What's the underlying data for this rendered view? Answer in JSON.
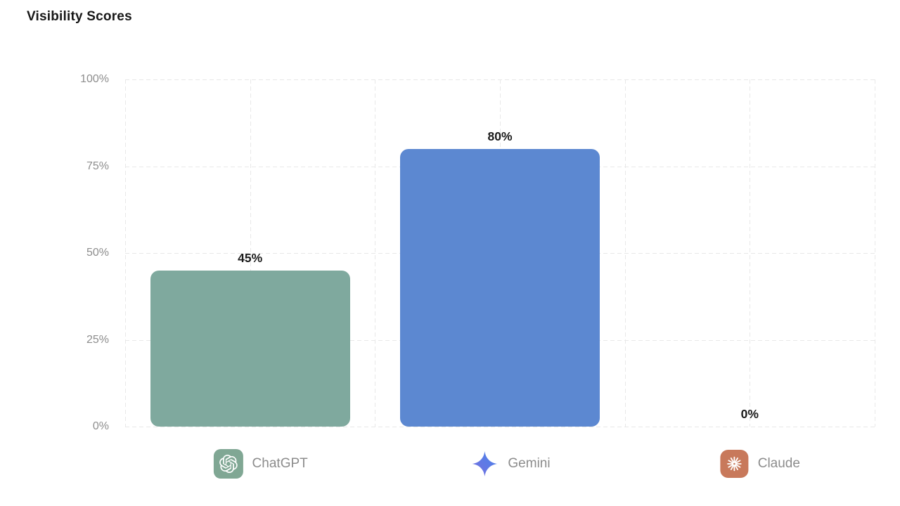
{
  "page_title": "Visibility Scores",
  "colors": {
    "background": "#ffffff",
    "grid": "#e8e8e8",
    "title_text": "#171717",
    "axis_tick_text": "#8d8d8d",
    "value_label_text": "#1b1b1b",
    "legend_label_text": "#8c8c8c",
    "chatgpt_bar": "#7FA99E",
    "gemini_bar": "#5C88D1",
    "chatgpt_icon_bg": "#80A794",
    "claude_icon_bg": "#C8795B",
    "gemini_gradient_start": "#7A6FDE",
    "gemini_gradient_end": "#4684EC"
  },
  "chart_data": {
    "type": "bar",
    "title": "Visibility Scores",
    "categories": [
      "ChatGPT",
      "Gemini",
      "Claude"
    ],
    "values": [
      45,
      80,
      0
    ],
    "value_labels": [
      "45%",
      "80%",
      "0%"
    ],
    "bar_colors": [
      "#7FA99E",
      "#5C88D1",
      "#C8795B"
    ],
    "xlabel": "",
    "ylabel": "",
    "ylim": [
      0,
      100
    ],
    "yticks": [
      {
        "value": 0,
        "label": "0%"
      },
      {
        "value": 25,
        "label": "25%"
      },
      {
        "value": 50,
        "label": "50%"
      },
      {
        "value": 75,
        "label": "75%"
      },
      {
        "value": 100,
        "label": "100%"
      }
    ],
    "grid": "dashed horizontal and vertical",
    "legend_position": "bottom",
    "legend": [
      {
        "label": "ChatGPT",
        "icon": "openai-icon",
        "icon_bg": "#80A794"
      },
      {
        "label": "Gemini",
        "icon": "gemini-star-icon",
        "icon_gradient": [
          "#7A6FDE",
          "#4684EC"
        ]
      },
      {
        "label": "Claude",
        "icon": "claude-starburst-icon",
        "icon_bg": "#C8795B"
      }
    ]
  }
}
